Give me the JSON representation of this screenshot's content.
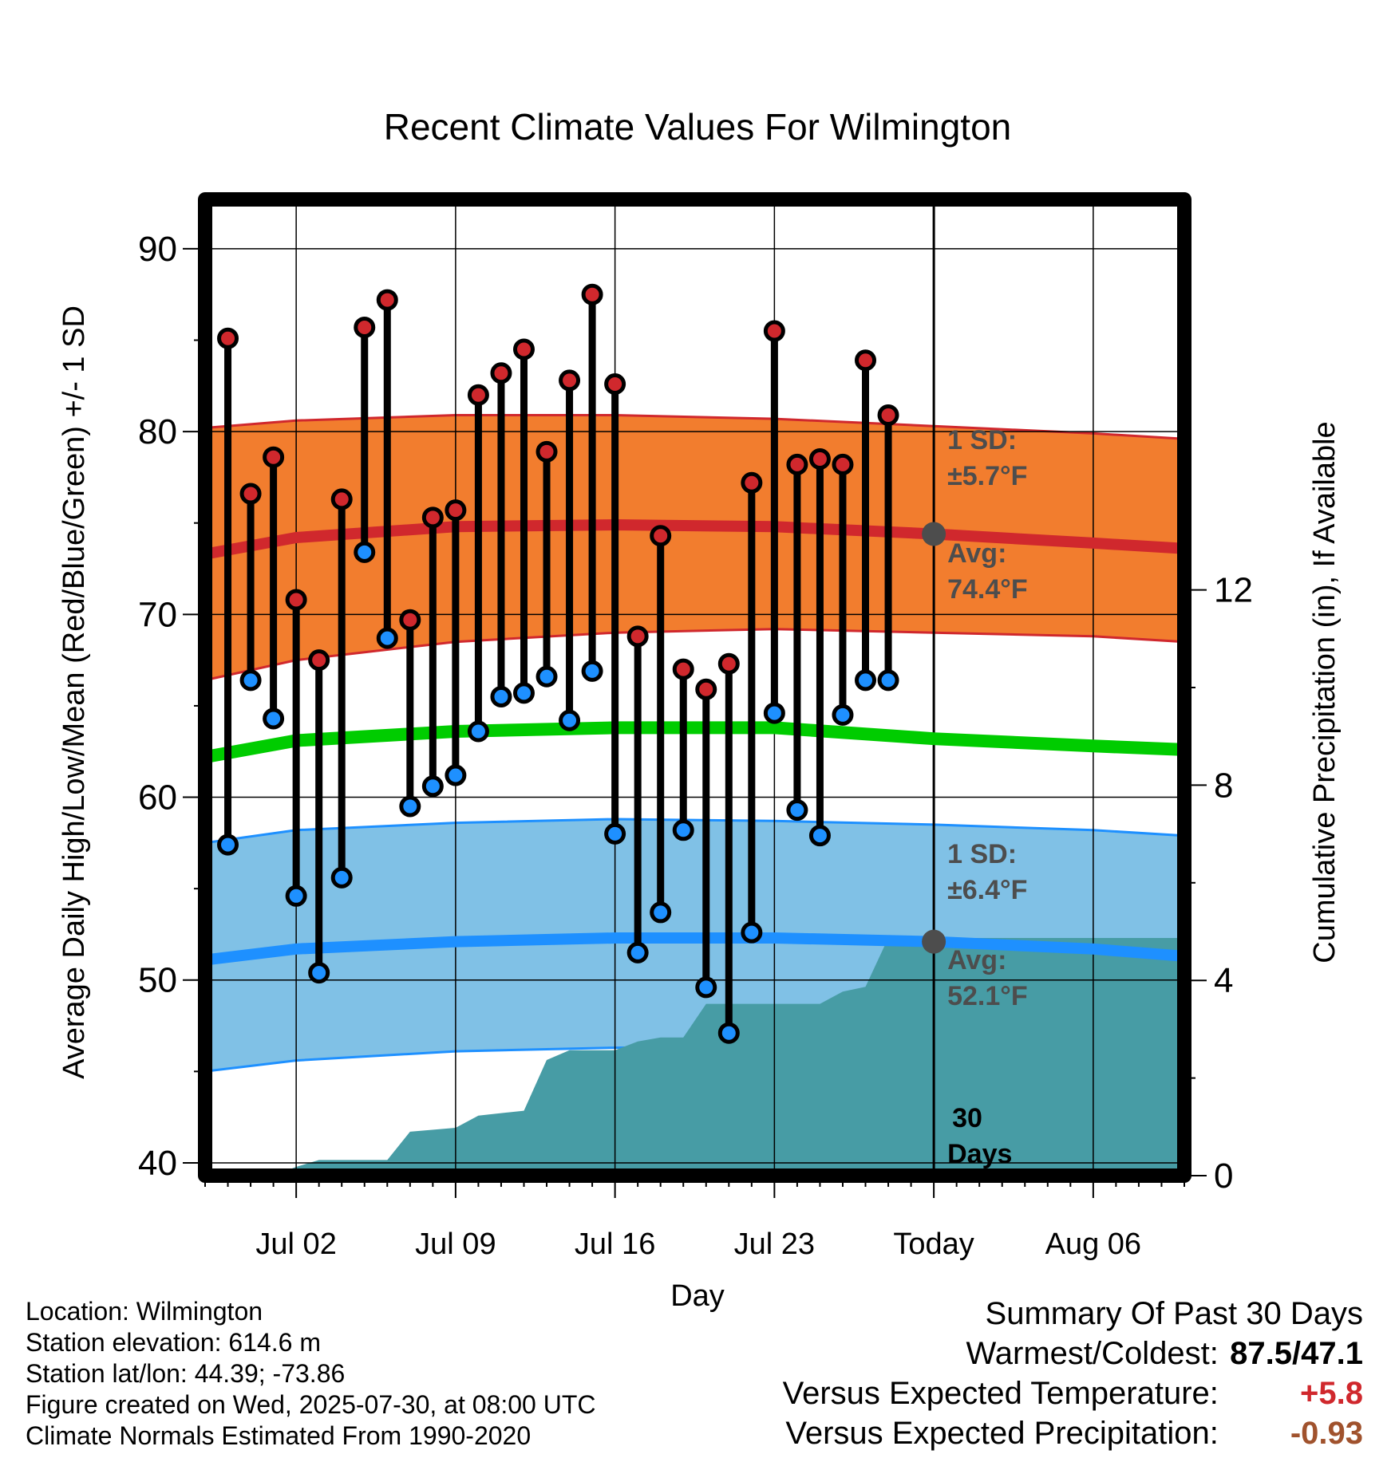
{
  "chart_data": {
    "type": "line",
    "title": "Recent Climate Values For Wilmington",
    "xlabel": "Day",
    "ylabel": "Average Daily High/Low/Mean (Red/Blue/Green) +/- 1 SD",
    "y2label": "Cumulative Precipitation (in), If Available",
    "ylim": [
      39.3,
      92.7
    ],
    "y2lim": [
      0,
      20
    ],
    "xlim": [
      "2025-06-28",
      "2025-08-10"
    ],
    "yticks": [
      "40",
      "50",
      "60",
      "70",
      "80",
      "90"
    ],
    "y2ticks": [
      "0",
      "4",
      "8",
      "12"
    ],
    "xticks": [
      {
        "date": "2025-07-02",
        "label": "Jul 02"
      },
      {
        "date": "2025-07-09",
        "label": "Jul 09"
      },
      {
        "date": "2025-07-16",
        "label": "Jul 16"
      },
      {
        "date": "2025-07-23",
        "label": "Jul 23"
      },
      {
        "date": "2025-07-30",
        "label": "Today"
      },
      {
        "date": "2025-08-06",
        "label": "Aug 06"
      }
    ],
    "grid": true,
    "today_date": "2025-07-30",
    "dates": [
      "2025-06-29",
      "2025-06-30",
      "2025-07-01",
      "2025-07-02",
      "2025-07-03",
      "2025-07-04",
      "2025-07-05",
      "2025-07-06",
      "2025-07-07",
      "2025-07-08",
      "2025-07-09",
      "2025-07-10",
      "2025-07-11",
      "2025-07-12",
      "2025-07-13",
      "2025-07-14",
      "2025-07-15",
      "2025-07-16",
      "2025-07-17",
      "2025-07-18",
      "2025-07-19",
      "2025-07-20",
      "2025-07-21",
      "2025-07-22",
      "2025-07-23",
      "2025-07-24",
      "2025-07-25",
      "2025-07-26",
      "2025-07-27",
      "2025-07-28",
      "2025-07-29"
    ],
    "highs": [
      85.1,
      76.6,
      78.6,
      70.8,
      67.5,
      76.3,
      85.7,
      87.2,
      69.7,
      75.3,
      75.7,
      82.0,
      83.2,
      84.5,
      78.9,
      82.8,
      87.5,
      82.6,
      68.8,
      74.3,
      67.0,
      65.9,
      67.3,
      77.2,
      85.5,
      78.2,
      78.5,
      78.2,
      83.9,
      80.9,
      null
    ],
    "lows": [
      57.4,
      66.4,
      64.3,
      54.6,
      50.4,
      55.6,
      73.4,
      68.7,
      59.5,
      60.6,
      61.2,
      63.6,
      65.5,
      65.7,
      66.6,
      64.2,
      66.9,
      58.0,
      51.5,
      53.7,
      58.2,
      49.6,
      47.1,
      52.6,
      64.6,
      59.3,
      57.9,
      64.5,
      66.4,
      66.4,
      null
    ],
    "normals": {
      "dates": [
        "2025-06-28",
        "2025-07-02",
        "2025-07-09",
        "2025-07-16",
        "2025-07-23",
        "2025-07-30",
        "2025-08-06",
        "2025-08-10"
      ],
      "high_avg": [
        73.3,
        74.2,
        74.8,
        74.9,
        74.8,
        74.4,
        73.9,
        73.6
      ],
      "high_upper": [
        80.2,
        80.6,
        80.9,
        80.9,
        80.7,
        80.3,
        79.9,
        79.6
      ],
      "high_lower": [
        66.4,
        67.5,
        68.5,
        69.0,
        69.2,
        69.0,
        68.8,
        68.5
      ],
      "mean": [
        62.2,
        63.1,
        63.6,
        63.8,
        63.8,
        63.2,
        62.8,
        62.6
      ],
      "low_avg": [
        51.1,
        51.7,
        52.1,
        52.3,
        52.3,
        52.1,
        51.7,
        51.3
      ],
      "low_upper": [
        57.5,
        58.2,
        58.6,
        58.8,
        58.7,
        58.5,
        58.2,
        57.9
      ],
      "low_lower": [
        45.0,
        45.6,
        46.1,
        46.3,
        46.4,
        46.3,
        46.1,
        45.8
      ]
    },
    "precip": {
      "dates": [
        "2025-06-28",
        "2025-07-01",
        "2025-07-02",
        "2025-07-03",
        "2025-07-06",
        "2025-07-07",
        "2025-07-09",
        "2025-07-10",
        "2025-07-12",
        "2025-07-13",
        "2025-07-14",
        "2025-07-16",
        "2025-07-17",
        "2025-07-18",
        "2025-07-19",
        "2025-07-20",
        "2025-07-21",
        "2025-07-23",
        "2025-07-24",
        "2025-07-25",
        "2025-07-26",
        "2025-07-27",
        "2025-07-28",
        "2025-08-10"
      ],
      "values": [
        0.0,
        0.0,
        0.18,
        0.32,
        0.32,
        0.9,
        0.98,
        1.23,
        1.33,
        2.37,
        2.57,
        2.57,
        2.75,
        2.83,
        2.83,
        3.52,
        3.52,
        3.52,
        3.52,
        3.52,
        3.77,
        3.87,
        4.87,
        4.87
      ]
    },
    "annotations": {
      "high_sd": [
        "1 SD:",
        "±5.7°F"
      ],
      "high_avg": [
        "Avg:",
        "74.4°F"
      ],
      "low_sd": [
        "1 SD:",
        "±6.4°F"
      ],
      "low_avg": [
        "Avg:",
        "52.1°F"
      ],
      "days": [
        "30",
        "Days"
      ]
    },
    "colors": {
      "high": "#d0282d",
      "high_band": "#f27d2e",
      "low": "#1e90ff",
      "low_band": "#80c1e6",
      "mean": "#00cc00",
      "precip": "#479ca5",
      "annotation": "#4d4d4d"
    }
  },
  "footer": {
    "location": "Location: Wilmington",
    "elevation": "Station elevation: 614.6 m",
    "latlon": "Station lat/lon: 44.39; -73.86",
    "created": "Figure created on Wed, 2025-07-30, at 08:00 UTC",
    "normals": "Climate Normals Estimated From 1990-2020"
  },
  "summary": {
    "heading": "Summary Of Past 30 Days",
    "warmest_label": "Warmest/Coldest:",
    "warmest_value": "87.5/47.1",
    "temp_label": "Versus Expected Temperature:",
    "temp_value": "+5.8",
    "precip_label": "Versus Expected Precipitation:",
    "precip_value": "-0.93"
  }
}
